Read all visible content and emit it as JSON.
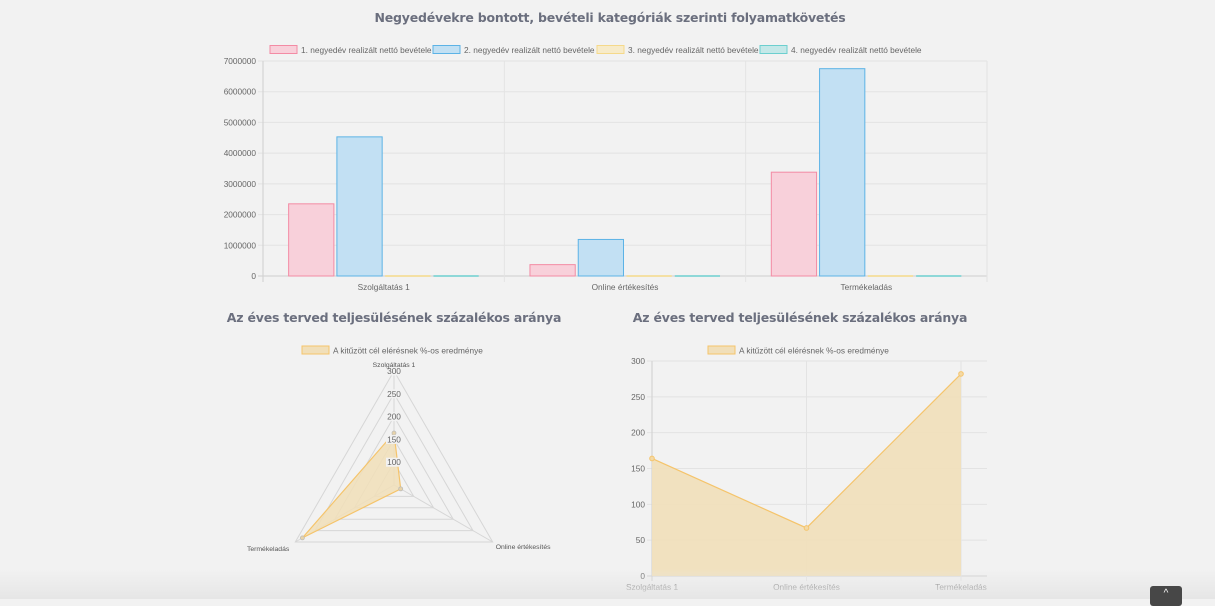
{
  "charts": {
    "bar": {
      "title": "Negyedévekre bontott, bevételi kategóriák szerinti folyamatkövetés"
    },
    "radar": {
      "title": "Az éves terved teljesülésének százalékos aránya"
    },
    "line": {
      "title": "Az éves terved teljesülésének százalékos aránya"
    }
  },
  "scroll_top_button": {
    "icon": "chevron-up-icon",
    "label": "^"
  },
  "chart_data": [
    {
      "type": "bar",
      "title": "Negyedévekre bontott, bevételi kategóriák szerinti folyamatkövetés",
      "categories": [
        "Szolgáltatás 1",
        "Online értékesítés",
        "Termékeladás"
      ],
      "series": [
        {
          "name": "1. negyedév realizált nettó bevétele",
          "values": [
            2350000,
            370000,
            3380000
          ],
          "fill": "#f8d0da",
          "stroke": "#f38ba4"
        },
        {
          "name": "2. negyedév realizált nettó bevétele",
          "values": [
            4530000,
            1190000,
            6750000
          ],
          "fill": "#c2e0f3",
          "stroke": "#5cb3e6"
        },
        {
          "name": "3. negyedév realizált nettó bevétele",
          "values": [
            0,
            0,
            0
          ],
          "fill": "#f7ebc9",
          "stroke": "#f5d98a"
        },
        {
          "name": "4. negyedév realizált nettó bevétele",
          "values": [
            0,
            0,
            0
          ],
          "fill": "#c4e8e8",
          "stroke": "#6ccfcf"
        }
      ],
      "ylim": [
        0,
        7000000
      ],
      "yticks": [
        0,
        1000000,
        2000000,
        3000000,
        4000000,
        5000000,
        6000000,
        7000000
      ],
      "xlabel": "",
      "ylabel": "",
      "grid": true,
      "legend": "top"
    },
    {
      "type": "radar",
      "title": "Az éves terved teljesülésének százalékos aránya",
      "categories": [
        "Szolgáltatás 1",
        "Online értékesítés",
        "Termékeladás"
      ],
      "series": [
        {
          "name": "A kitűzött cél elérésnek %-os eredménye",
          "values": [
            164,
            67,
            282
          ],
          "fill": "#f1dfb9",
          "stroke": "#f5c46b"
        }
      ],
      "rlim": [
        50,
        300
      ],
      "rticks": [
        100,
        150,
        200,
        250,
        300
      ],
      "legend": "top"
    },
    {
      "type": "area",
      "title": "Az éves terved teljesülésének százalékos aránya",
      "categories": [
        "Szolgáltatás 1",
        "Online értékesítés",
        "Termékeladás"
      ],
      "series": [
        {
          "name": "A kitűzött cél elérésnek %-os eredménye",
          "values": [
            164,
            67,
            282
          ],
          "fill": "#f1dfb9",
          "stroke": "#f5c46b"
        }
      ],
      "ylim": [
        0,
        300
      ],
      "yticks": [
        0,
        50,
        100,
        150,
        200,
        250,
        300
      ],
      "xlabel": "",
      "ylabel": "",
      "grid": true,
      "legend": "top"
    }
  ]
}
